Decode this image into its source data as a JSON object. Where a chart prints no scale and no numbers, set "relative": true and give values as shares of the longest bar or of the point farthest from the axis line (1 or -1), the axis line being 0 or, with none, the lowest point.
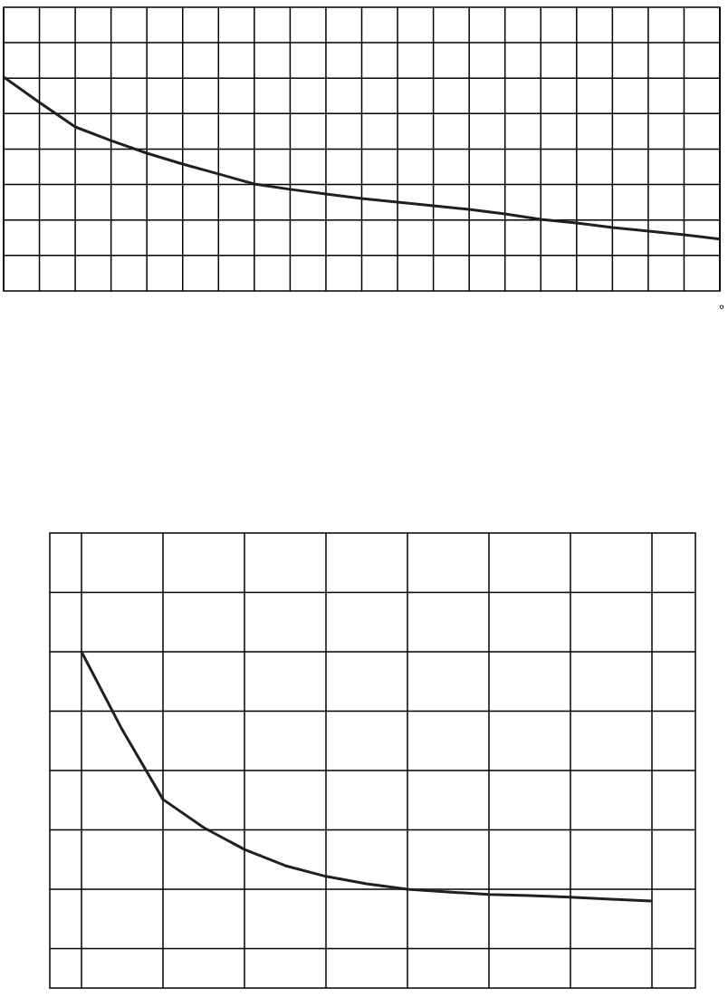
{
  "chart_data": [
    {
      "type": "line",
      "relative": true,
      "grid": true,
      "tick_labels": false,
      "marker": "none",
      "categories": [
        null,
        null,
        null,
        null,
        null,
        null,
        null,
        null,
        null,
        null,
        null,
        null,
        null,
        null,
        null,
        null,
        null,
        null,
        null,
        null,
        null
      ],
      "series": [
        {
          "color": "#231f20",
          "values": [
            1.0,
            0.881,
            0.767,
            0.703,
            0.644,
            0.593,
            0.547,
            0.5,
            0.475,
            0.453,
            0.432,
            0.415,
            0.398,
            0.381,
            0.36,
            0.335,
            0.318,
            0.297,
            0.28,
            0.263,
            0.242
          ]
        }
      ],
      "annotations": [
        "°"
      ]
    },
    {
      "type": "line",
      "relative": true,
      "grid": true,
      "tick_labels": false,
      "marker": "none",
      "categories": [
        null,
        null,
        null,
        null,
        null,
        null,
        null,
        null,
        null,
        null,
        null,
        null,
        null,
        null,
        null
      ],
      "series": [
        {
          "color": "#231f20",
          "values": [
            1.0,
            0.768,
            0.561,
            0.477,
            0.412,
            0.364,
            0.332,
            0.31,
            0.294,
            0.286,
            0.278,
            0.275,
            0.27,
            0.264,
            0.259
          ]
        }
      ]
    }
  ]
}
